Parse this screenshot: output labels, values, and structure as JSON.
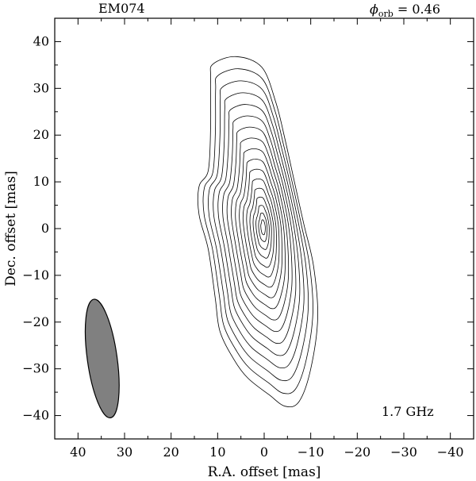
{
  "chart_data": {
    "type": "contour",
    "title_left": "EM074",
    "phase_symbol": "ϕ",
    "phase_subscript": "orb",
    "phase_value": " = 0.46",
    "frequency": "1.7 GHz",
    "xlabel": "R.A. offset [mas]",
    "ylabel": "Dec. offset [mas]",
    "xlim": [
      45,
      -45
    ],
    "ylim": [
      -45,
      45
    ],
    "x_ticks": [
      40,
      30,
      20,
      10,
      0,
      -10,
      -20,
      -30,
      -40
    ],
    "x_tick_labels": [
      "40",
      "30",
      "20",
      "10",
      "0",
      "−10",
      "−20",
      "−30",
      "−40"
    ],
    "y_ticks": [
      40,
      30,
      20,
      10,
      0,
      -10,
      -20,
      -30,
      -40
    ],
    "y_tick_labels": [
      "40",
      "30",
      "20",
      "10",
      "0",
      "−10",
      "−20",
      "−30",
      "−40"
    ],
    "beam": {
      "x": 34.8,
      "y": -27.8,
      "major": 25.6,
      "minor": 6.4,
      "pa_deg": 8,
      "fill": "#808080"
    },
    "peak": {
      "x": 0.2,
      "y": 0.3
    },
    "outer_contour": [
      [
        11.0,
        35.2
      ],
      [
        6.0,
        36.8
      ],
      [
        0.5,
        34.5
      ],
      [
        -2.5,
        27.0
      ],
      [
        -4.5,
        19.0
      ],
      [
        -6.5,
        10.0
      ],
      [
        -8.5,
        1.0
      ],
      [
        -10.6,
        -8.0
      ],
      [
        -11.5,
        -19.0
      ],
      [
        -10.0,
        -30.0
      ],
      [
        -7.5,
        -37.0
      ],
      [
        -4.5,
        -38.0
      ],
      [
        -1.0,
        -35.5
      ],
      [
        3.5,
        -32.0
      ],
      [
        6.5,
        -28.0
      ],
      [
        9.5,
        -22.0
      ],
      [
        10.5,
        -15.0
      ],
      [
        12.0,
        -4.5
      ],
      [
        14.0,
        3.0
      ],
      [
        14.0,
        9.0
      ],
      [
        12.0,
        12.5
      ],
      [
        11.5,
        22.0
      ],
      [
        11.5,
        32.0
      ]
    ],
    "contour_levels": 17
  }
}
